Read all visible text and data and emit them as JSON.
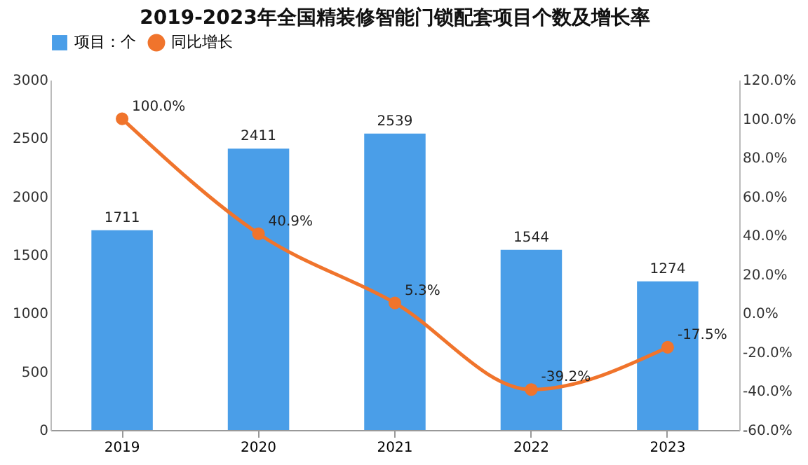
{
  "chart_data": {
    "type": "bar",
    "title": "2019-2023年全国精装修智能门锁配套项目个数及增长率",
    "categories": [
      "2019",
      "2020",
      "2021",
      "2022",
      "2023"
    ],
    "series": [
      {
        "name": "项目：个",
        "color": "#4a9ee8",
        "values": [
          1711,
          2411,
          2539,
          1544,
          1274
        ],
        "value_labels": [
          "1711",
          "2411",
          "2539",
          "1544",
          "1274"
        ]
      },
      {
        "name": "同比增长",
        "type": "line",
        "axis": "y2",
        "color": "#f0742c",
        "values": [
          100,
          40.9,
          5.3,
          -39.2,
          -17.5
        ],
        "value_labels": [
          "100.0%",
          "40.9%",
          "5.3%",
          "-39.2%",
          "-17.5%"
        ]
      }
    ],
    "ylim": [
      0,
      3000
    ],
    "yticks": [
      0,
      500,
      1000,
      1500,
      2000,
      2500,
      3000
    ],
    "y2lim": [
      -60,
      120
    ],
    "y2ticks": [
      {
        "value": -60,
        "label": "-60.0%"
      },
      {
        "value": -40,
        "label": "-40.0%"
      },
      {
        "value": -20,
        "label": "-20.0%"
      },
      {
        "value": 0,
        "label": "0.0%"
      },
      {
        "value": 20,
        "label": "20.0%"
      },
      {
        "value": 40,
        "label": "40.0%"
      },
      {
        "value": 60,
        "label": "60.0%"
      },
      {
        "value": 80,
        "label": "80.0%"
      },
      {
        "value": 100,
        "label": "100.0%"
      },
      {
        "value": 120,
        "label": "120.0%"
      }
    ],
    "legend": "top",
    "marker": "circle",
    "line_style": "solid",
    "grid": false
  }
}
